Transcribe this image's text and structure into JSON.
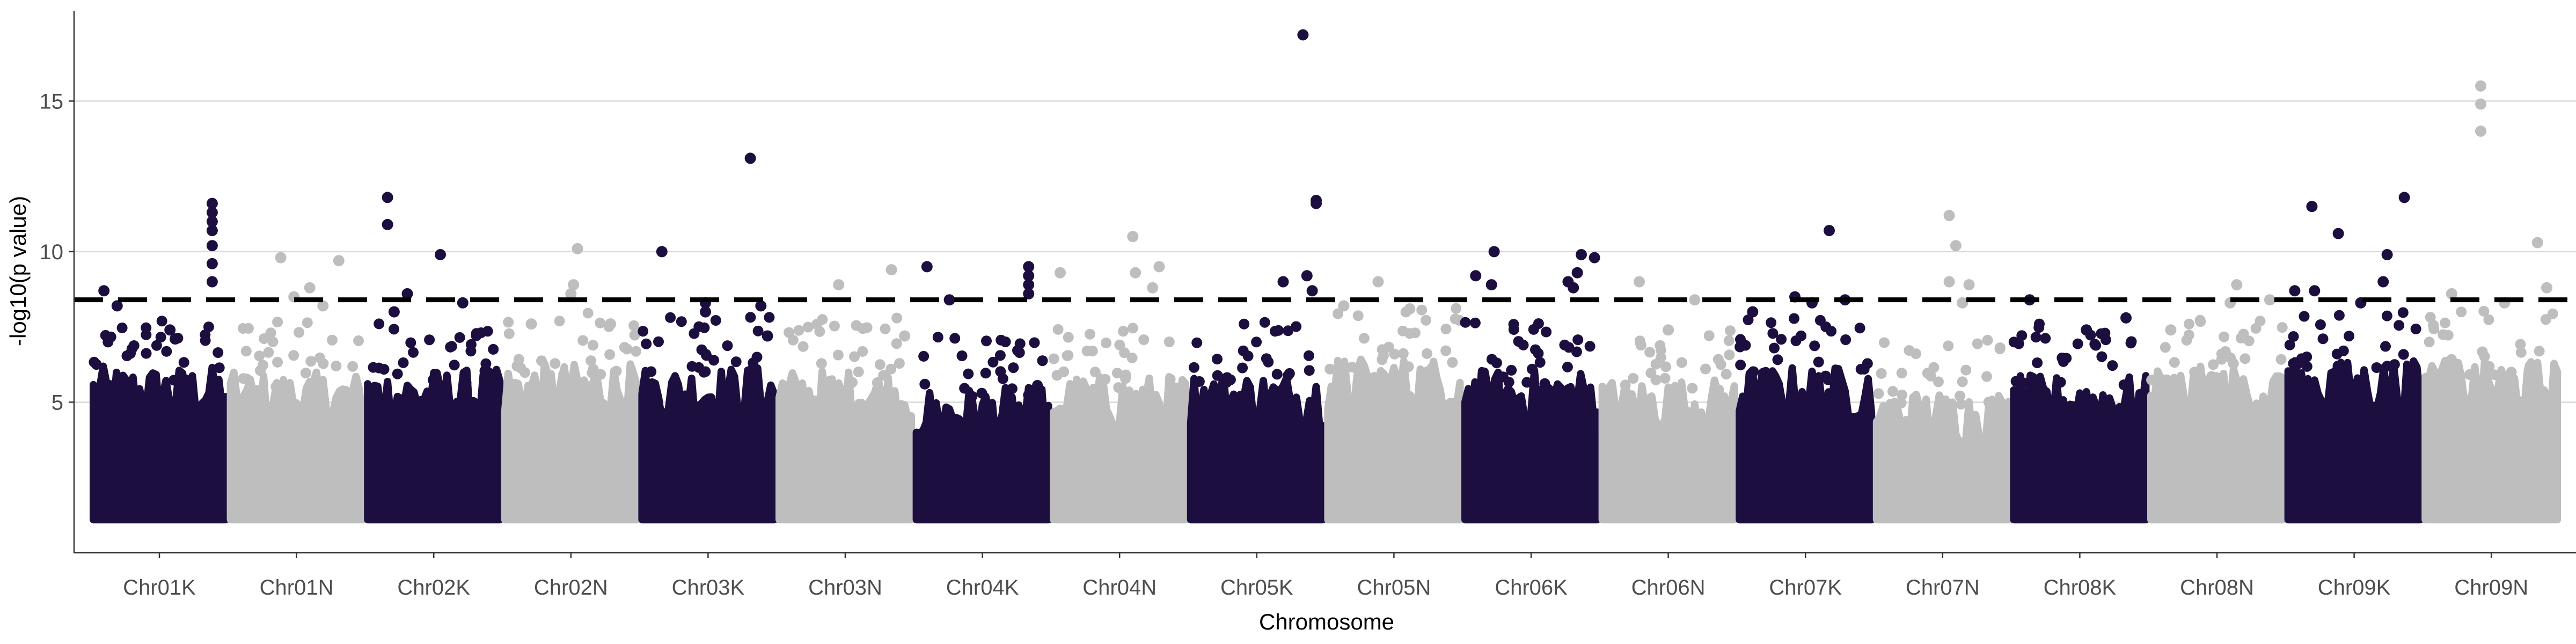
{
  "chart_data": {
    "type": "scatter",
    "xlabel": "Chromosome",
    "ylabel": "-log10(p value)",
    "ylim": [
      0,
      18
    ],
    "yticks": [
      5,
      10,
      15
    ],
    "grid": "horizontal-major",
    "threshold": 8.4,
    "colors": {
      "dark": "#1c0f40",
      "light": "#bebebe",
      "threshold": "#000000"
    },
    "categories": [
      "Chr01K",
      "Chr01N",
      "Chr02K",
      "Chr02N",
      "Chr03K",
      "Chr03N",
      "Chr04K",
      "Chr04N",
      "Chr05K",
      "Chr05N",
      "Chr06K",
      "Chr06N",
      "Chr07K",
      "Chr07N",
      "Chr08K",
      "Chr08N",
      "Chr09K",
      "Chr09N"
    ],
    "series": [
      {
        "chromosome": "Chr01K",
        "base": 5.3,
        "peaks": [
          [
            0.08,
            8.7
          ],
          [
            0.18,
            8.2
          ],
          [
            0.9,
            11.6
          ],
          [
            0.9,
            11.3
          ],
          [
            0.9,
            11.0
          ],
          [
            0.9,
            10.7
          ],
          [
            0.9,
            10.2
          ],
          [
            0.9,
            9.6
          ],
          [
            0.9,
            9.0
          ],
          [
            0.58,
            7.4
          ],
          [
            0.62,
            7.1
          ]
        ]
      },
      {
        "chromosome": "Chr01N",
        "base": 5.1,
        "peaks": [
          [
            0.38,
            9.8
          ],
          [
            0.6,
            8.8
          ],
          [
            0.82,
            9.7
          ],
          [
            0.48,
            8.5
          ],
          [
            0.7,
            8.2
          ]
        ]
      },
      {
        "chromosome": "Chr02K",
        "base": 5.2,
        "peaks": [
          [
            0.15,
            11.8
          ],
          [
            0.15,
            10.9
          ],
          [
            0.55,
            9.9
          ],
          [
            0.3,
            8.6
          ],
          [
            0.72,
            8.3
          ],
          [
            0.2,
            8.0
          ]
        ]
      },
      {
        "chromosome": "Chr02N",
        "base": 5.4,
        "peaks": [
          [
            0.55,
            10.1
          ],
          [
            0.52,
            8.9
          ],
          [
            0.5,
            8.6
          ],
          [
            0.2,
            7.6
          ],
          [
            0.8,
            7.6
          ]
        ]
      },
      {
        "chromosome": "Chr03K",
        "base": 5.3,
        "peaks": [
          [
            0.15,
            10.0
          ],
          [
            0.48,
            8.3
          ],
          [
            0.48,
            8.0
          ],
          [
            0.82,
            13.1
          ],
          [
            0.9,
            8.2
          ],
          [
            0.95,
            7.2
          ]
        ]
      },
      {
        "chromosome": "Chr03N",
        "base": 5.2,
        "peaks": [
          [
            0.45,
            8.9
          ],
          [
            0.85,
            9.4
          ],
          [
            0.95,
            7.2
          ]
        ]
      },
      {
        "chromosome": "Chr04K",
        "base": 4.6,
        "peaks": [
          [
            0.08,
            9.5
          ],
          [
            0.25,
            8.4
          ],
          [
            0.85,
            9.5
          ],
          [
            0.85,
            9.2
          ],
          [
            0.85,
            8.9
          ],
          [
            0.85,
            8.6
          ]
        ]
      },
      {
        "chromosome": "Chr04N",
        "base": 5.0,
        "peaks": [
          [
            0.05,
            9.3
          ],
          [
            0.6,
            10.5
          ],
          [
            0.62,
            9.3
          ],
          [
            0.8,
            9.5
          ],
          [
            0.75,
            8.8
          ]
        ]
      },
      {
        "chromosome": "Chr05K",
        "base": 5.1,
        "peaks": [
          [
            0.85,
            17.2
          ],
          [
            0.95,
            11.7
          ],
          [
            0.95,
            11.6
          ],
          [
            0.7,
            9.0
          ],
          [
            0.88,
            9.2
          ],
          [
            0.92,
            8.7
          ]
        ]
      },
      {
        "chromosome": "Chr05N",
        "base": 5.6,
        "peaks": [
          [
            0.38,
            9.0
          ],
          [
            0.12,
            8.2
          ],
          [
            0.62,
            8.1
          ]
        ]
      },
      {
        "chromosome": "Chr06K",
        "base": 5.2,
        "peaks": [
          [
            0.08,
            9.2
          ],
          [
            0.22,
            10.0
          ],
          [
            0.2,
            8.9
          ],
          [
            0.88,
            9.9
          ],
          [
            0.85,
            9.3
          ],
          [
            0.78,
            9.0
          ],
          [
            0.98,
            9.8
          ],
          [
            0.82,
            8.8
          ]
        ]
      },
      {
        "chromosome": "Chr06N",
        "base": 4.9,
        "peaks": [
          [
            0.28,
            9.0
          ],
          [
            0.7,
            8.4
          ],
          [
            0.5,
            7.4
          ]
        ]
      },
      {
        "chromosome": "Chr07K",
        "base": 5.3,
        "peaks": [
          [
            0.1,
            8.0
          ],
          [
            0.42,
            8.5
          ],
          [
            0.55,
            8.3
          ],
          [
            0.68,
            10.7
          ],
          [
            0.8,
            8.4
          ]
        ]
      },
      {
        "chromosome": "Chr07N",
        "base": 4.5,
        "peaks": [
          [
            0.55,
            11.2
          ],
          [
            0.6,
            10.2
          ],
          [
            0.55,
            9.0
          ],
          [
            0.7,
            8.9
          ],
          [
            0.65,
            8.3
          ]
        ]
      },
      {
        "chromosome": "Chr08K",
        "base": 5.0,
        "peaks": [
          [
            0.12,
            8.4
          ],
          [
            0.55,
            7.4
          ],
          [
            0.85,
            7.8
          ]
        ]
      },
      {
        "chromosome": "Chr08N",
        "base": 5.3,
        "peaks": [
          [
            0.65,
            8.9
          ],
          [
            0.6,
            8.3
          ],
          [
            0.9,
            8.4
          ],
          [
            0.15,
            7.4
          ]
        ]
      },
      {
        "chromosome": "Chr09K",
        "base": 5.5,
        "peaks": [
          [
            0.05,
            8.7
          ],
          [
            0.18,
            11.5
          ],
          [
            0.38,
            10.6
          ],
          [
            0.75,
            9.9
          ],
          [
            0.88,
            11.8
          ],
          [
            0.72,
            9.0
          ],
          [
            0.2,
            8.7
          ],
          [
            0.55,
            8.3
          ]
        ]
      },
      {
        "chromosome": "Chr09N",
        "base": 5.5,
        "peaks": [
          [
            0.42,
            15.5
          ],
          [
            0.42,
            14.9
          ],
          [
            0.42,
            14.0
          ],
          [
            0.85,
            10.3
          ],
          [
            0.92,
            8.8
          ],
          [
            0.2,
            8.6
          ],
          [
            0.6,
            8.3
          ]
        ]
      }
    ]
  }
}
